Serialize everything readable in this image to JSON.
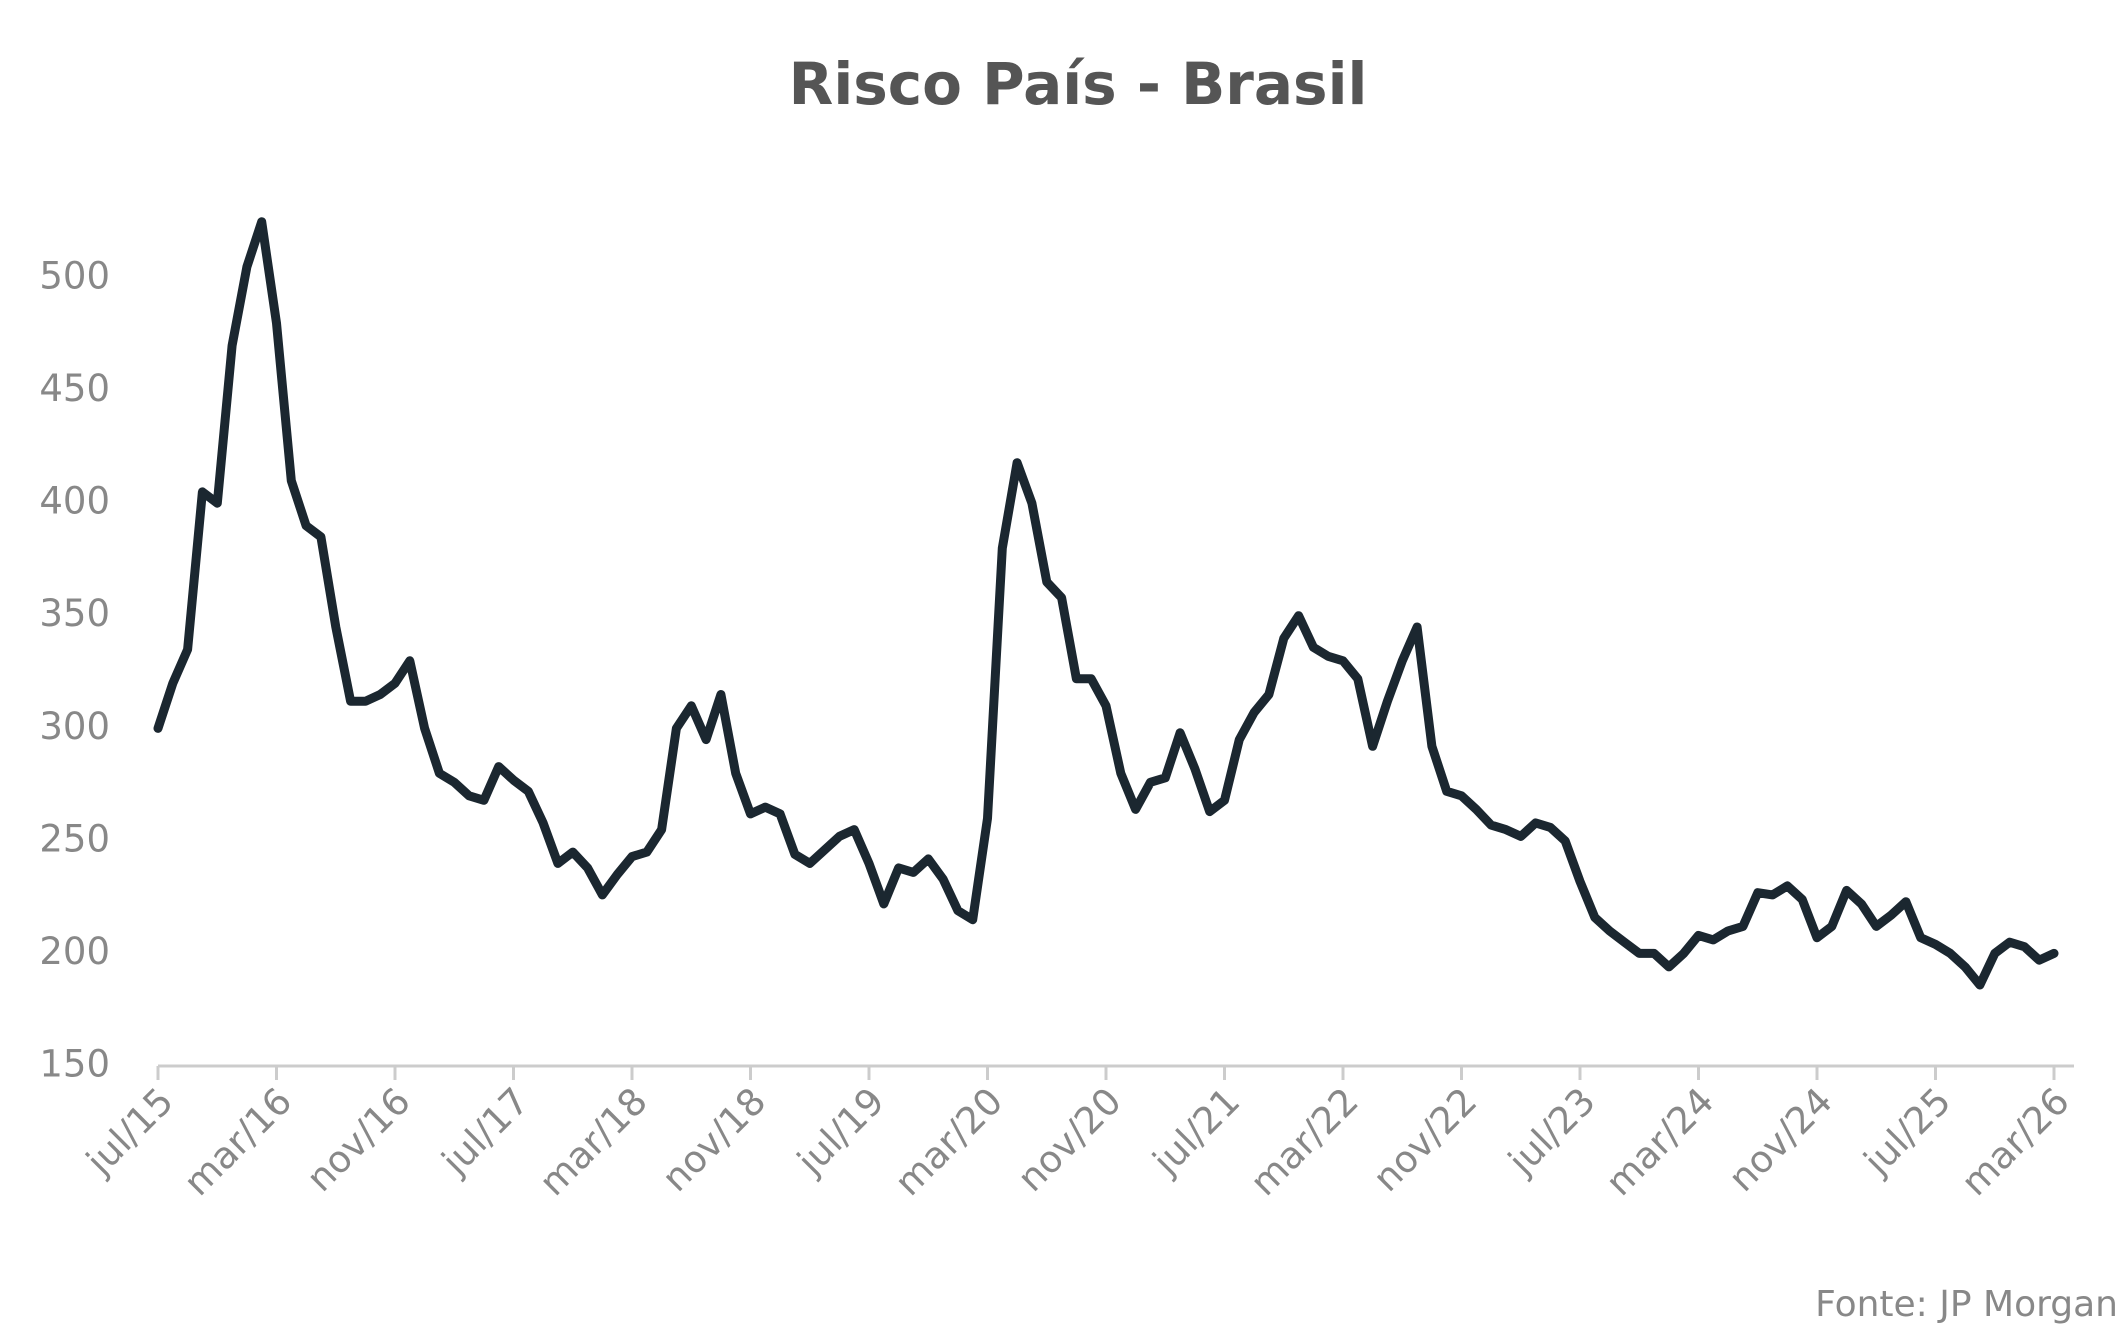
{
  "chart_data": {
    "type": "line",
    "title": "Risco País - Brasil",
    "source": "Fonte: JP Morgan",
    "categories": [
      "jul/15",
      null,
      null,
      null,
      null,
      null,
      null,
      null,
      "mar/16",
      null,
      null,
      null,
      null,
      null,
      null,
      null,
      "nov/16",
      null,
      null,
      null,
      null,
      null,
      null,
      null,
      "jul/17",
      null,
      null,
      null,
      null,
      null,
      null,
      null,
      "mar/18",
      null,
      null,
      null,
      null,
      null,
      null,
      null,
      "nov/18",
      null,
      null,
      null,
      null,
      null,
      null,
      null,
      "jul/19",
      null,
      null,
      null,
      null,
      null,
      null,
      null,
      "mar/20",
      null,
      null,
      null,
      null,
      null,
      null,
      null,
      "nov/20",
      null,
      null,
      null,
      null,
      null,
      null,
      null,
      "jul/21",
      null,
      null,
      null,
      null,
      null,
      null,
      null,
      "mar/22",
      null,
      null,
      null,
      null,
      null,
      null,
      null,
      "nov/22",
      null,
      null,
      null,
      null,
      null,
      null,
      null,
      "jul/23",
      null,
      null,
      null,
      null,
      null,
      null,
      null,
      "mar/24",
      null,
      null,
      null,
      null,
      null,
      null,
      null,
      "nov/24",
      null,
      null,
      null,
      null,
      null,
      null,
      null,
      "jul/25",
      null,
      null,
      null,
      null,
      null,
      null,
      null,
      "mar/26"
    ],
    "values": [
      300,
      320,
      335,
      405,
      400,
      470,
      505,
      525,
      480,
      410,
      390,
      385,
      345,
      312,
      312,
      315,
      320,
      330,
      300,
      280,
      276,
      270,
      268,
      283,
      277,
      272,
      258,
      240,
      245,
      238,
      226,
      235,
      243,
      245,
      255,
      300,
      310,
      295,
      315,
      280,
      262,
      265,
      262,
      244,
      240,
      246,
      252,
      255,
      240,
      222,
      238,
      236,
      242,
      233,
      219,
      215,
      260,
      380,
      418,
      400,
      365,
      358,
      322,
      322,
      310,
      280,
      264,
      276,
      278,
      298,
      282,
      263,
      268,
      295,
      307,
      315,
      340,
      350,
      336,
      332,
      330,
      322,
      292,
      312,
      330,
      345,
      292,
      272,
      270,
      264,
      257,
      255,
      252,
      258,
      256,
      250,
      232,
      216,
      210,
      205,
      200,
      200,
      194,
      200,
      208,
      206,
      210,
      212,
      227,
      226,
      230,
      224,
      207,
      212,
      228,
      222,
      212,
      217,
      223,
      207,
      204,
      200,
      194,
      186,
      200,
      205,
      203,
      197,
      200
    ],
    "color": "#1b2730",
    "ylim": [
      150,
      540
    ],
    "yticks": [
      150,
      200,
      250,
      300,
      350,
      400,
      450,
      500
    ],
    "grid": false
  }
}
